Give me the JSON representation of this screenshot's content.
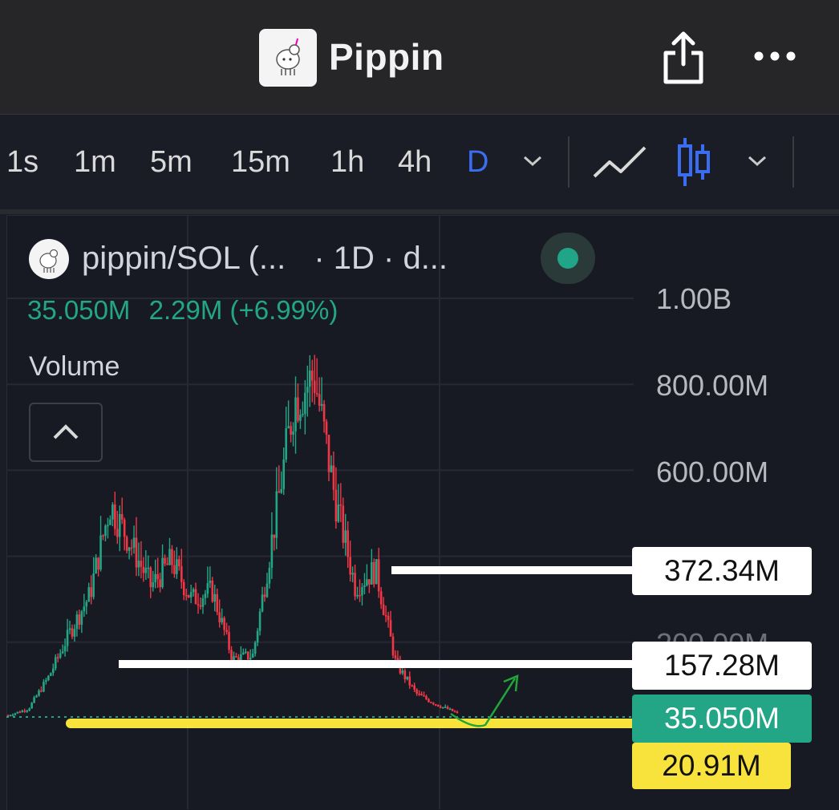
{
  "header": {
    "title": "Pippin",
    "logo_icon": "pippin-unicorn-logo",
    "share_icon": "share-icon",
    "more_icon": "more-dots-icon"
  },
  "toolbar": {
    "timeframes": [
      "1s",
      "1m",
      "5m",
      "15m",
      "1h",
      "4h",
      "D"
    ],
    "active_timeframe": "D",
    "accent_color": "#3a6df0"
  },
  "legend": {
    "symbol": "pippin/SOL (...",
    "interval": "· 1D · d...",
    "ohlc_value": "35.050M",
    "change": "2.29M (+6.99%)",
    "volume_label": "Volume",
    "status_color": "#20a589"
  },
  "chart_data": {
    "type": "candlestick",
    "title": "",
    "y_ticks": [
      "1.00B",
      "800.00M",
      "600.00M",
      "200.00M"
    ],
    "ylim": [
      0,
      1000000000
    ],
    "grid": true,
    "price_lines": [
      {
        "label": "372.34M",
        "value": 372340000,
        "color": "#ffffff"
      },
      {
        "label": "157.28M",
        "value": 157280000,
        "color": "#ffffff"
      },
      {
        "label": "35.050M",
        "value": 35050000,
        "color": "#22a686"
      },
      {
        "label": "20.91M",
        "value": 20910000,
        "color": "#f7e33b"
      }
    ],
    "series": [
      {
        "name": "price_path_approx",
        "values": [
          30000000,
          45000000,
          120000000,
          220000000,
          310000000,
          520000000,
          430000000,
          330000000,
          390000000,
          300000000,
          320000000,
          160000000,
          170000000,
          460000000,
          760000000,
          820000000,
          540000000,
          330000000,
          370000000,
          150000000,
          80000000,
          55000000,
          35000000
        ]
      }
    ],
    "up_color": "#22a686",
    "down_color": "#f23645"
  }
}
